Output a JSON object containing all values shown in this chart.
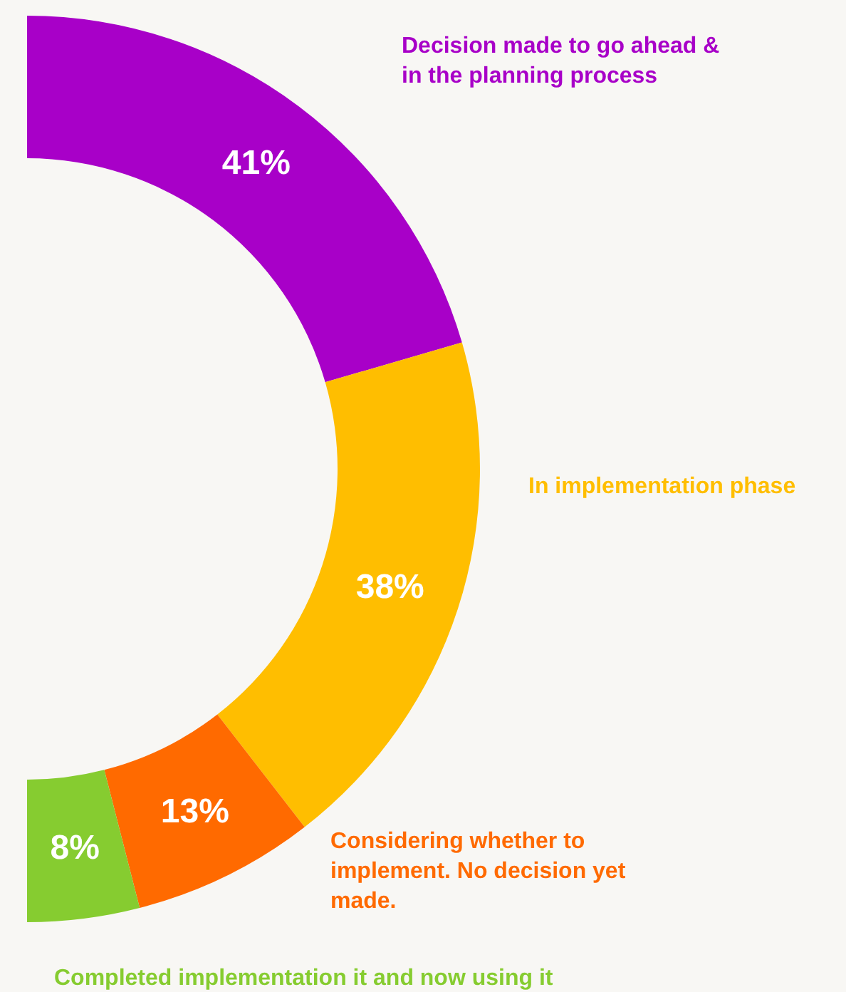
{
  "chart_data": {
    "type": "donut",
    "categories": [
      "Decision made to go ahead & in the planning process",
      "In implementation phase",
      "Considering whether to implement. No decision yet made.",
      "Completed implementation it and now using it"
    ],
    "values": [
      41,
      38,
      13,
      8
    ],
    "value_labels": [
      "41%",
      "38%",
      "13%",
      "8%"
    ],
    "colors": [
      "#a800c8",
      "#ffbe00",
      "#ff6a00",
      "#86cc30"
    ]
  }
}
